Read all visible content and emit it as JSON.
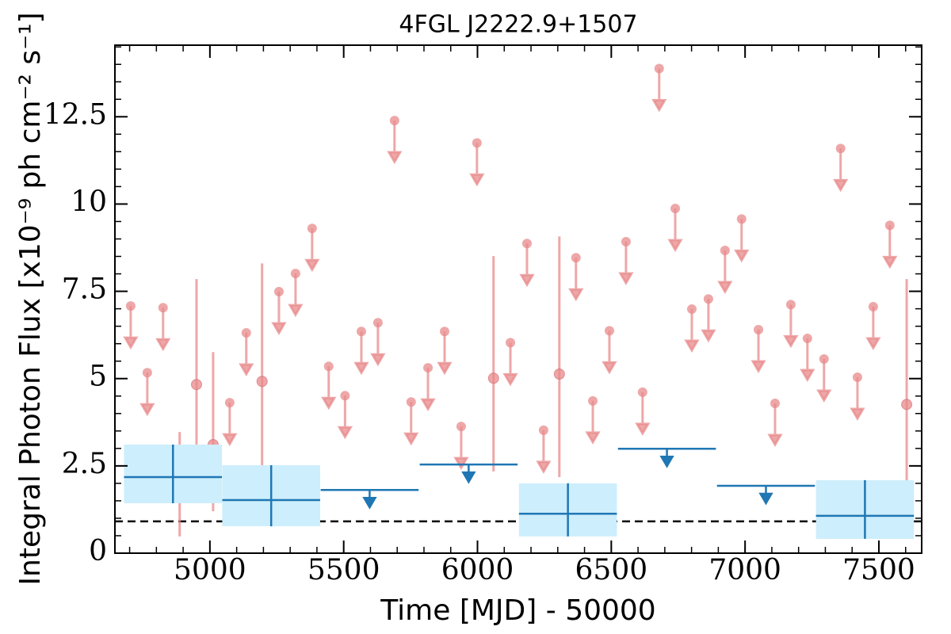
{
  "chart_data": {
    "type": "errorbar",
    "title": "4FGL J2222.9+1507",
    "x_label": "Time [MJD] - 50000",
    "y_label": "Integral Photon Flux [x10⁻⁹ ph cm⁻² s⁻¹]",
    "xlim": [
      4645,
      7660
    ],
    "ylim": [
      0,
      14.55
    ],
    "xticks": [
      5000,
      5500,
      6000,
      6500,
      7000,
      7500
    ],
    "yticks": [
      0,
      2.5,
      5,
      7.5,
      10,
      12.5
    ],
    "xminor_step": 100,
    "yminor_step": 0.5,
    "reference_line": {
      "value": 0.91,
      "color": "#000000"
    },
    "series": [
      {
        "kind": "upper_limit",
        "color": "#e8898b",
        "x": [
          4704,
          4766,
          4825,
          5074,
          5136,
          5258,
          5320,
          5382,
          5444,
          5505,
          5566,
          5628,
          5690,
          5752,
          5815,
          5877,
          5939,
          5998,
          6123,
          6185,
          6247,
          6368,
          6431,
          6493,
          6555,
          6617,
          6679,
          6739,
          6801,
          6863,
          6925,
          6987,
          7050,
          7112,
          7171,
          7233,
          7295,
          7357,
          7420,
          7479,
          7541
        ],
        "values": [
          7.08,
          5.17,
          7.03,
          4.31,
          6.31,
          7.49,
          8.01,
          9.3,
          5.35,
          4.51,
          6.35,
          6.6,
          12.39,
          4.33,
          5.31,
          6.35,
          3.63,
          11.75,
          6.03,
          8.87,
          3.52,
          8.46,
          4.36,
          6.37,
          8.92,
          4.61,
          13.88,
          9.87,
          6.99,
          7.28,
          8.67,
          9.57,
          6.4,
          4.29,
          7.12,
          6.15,
          5.56,
          11.59,
          5.04,
          7.06,
          9.39
        ]
      },
      {
        "kind": "detection",
        "color": "#e8898b",
        "x": [
          4887,
          4950,
          5012,
          5195,
          6060,
          6306,
          7604
        ],
        "values": [
          1.61,
          4.83,
          3.11,
          4.92,
          5.01,
          5.13,
          4.26
        ],
        "err_minus": [
          1.13,
          2.33,
          1.91,
          2.65,
          2.67,
          2.95,
          2.49
        ],
        "err_plus": [
          1.86,
          3.02,
          2.65,
          3.38,
          3.5,
          3.94,
          3.59
        ]
      },
      {
        "kind": "upper_limit",
        "color": "#1f77b4",
        "x": [
          5597,
          5967,
          6708,
          7078
        ],
        "xerr": [
          183,
          183,
          183,
          183
        ],
        "values": [
          1.81,
          2.54,
          2.99,
          1.93
        ]
      },
      {
        "kind": "detection",
        "color": "#1f77b4",
        "box_color": "#cdeefc",
        "x": [
          4862,
          5229,
          6338,
          7448
        ],
        "xerr": [
          183,
          183,
          183,
          183
        ],
        "values": [
          2.18,
          1.52,
          1.13,
          1.07
        ],
        "err_minus": [
          0.75,
          0.75,
          0.65,
          0.66
        ],
        "err_plus": [
          0.93,
          1.0,
          0.87,
          1.02
        ]
      }
    ]
  }
}
